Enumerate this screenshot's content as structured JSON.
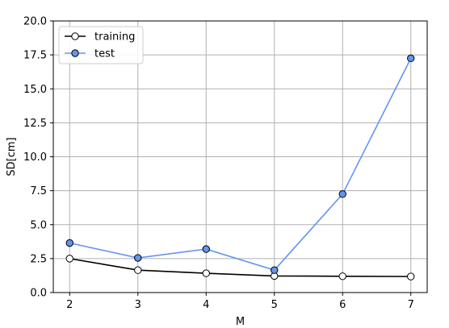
{
  "chart_data": {
    "type": "line",
    "title": "",
    "xlabel": "M",
    "ylabel": "SD[cm]",
    "x": [
      2,
      3,
      4,
      5,
      6,
      7
    ],
    "xticks": [
      "2",
      "3",
      "4",
      "5",
      "6",
      "7"
    ],
    "yticks": [
      "0.0",
      "2.5",
      "5.0",
      "7.5",
      "10.0",
      "12.5",
      "15.0",
      "17.5",
      "20.0"
    ],
    "xlim": [
      1.76,
      7.24
    ],
    "ylim": [
      0,
      20
    ],
    "grid": true,
    "legend_position": "top-left",
    "series": [
      {
        "name": "training",
        "values": [
          2.5,
          1.65,
          1.42,
          1.22,
          1.2,
          1.18
        ],
        "color": "#000000",
        "marker_fill": "#ffffff"
      },
      {
        "name": "test",
        "values": [
          3.65,
          2.55,
          3.2,
          1.65,
          7.25,
          17.25
        ],
        "color": "#6495ed",
        "marker_fill": "#6495ed"
      }
    ]
  }
}
